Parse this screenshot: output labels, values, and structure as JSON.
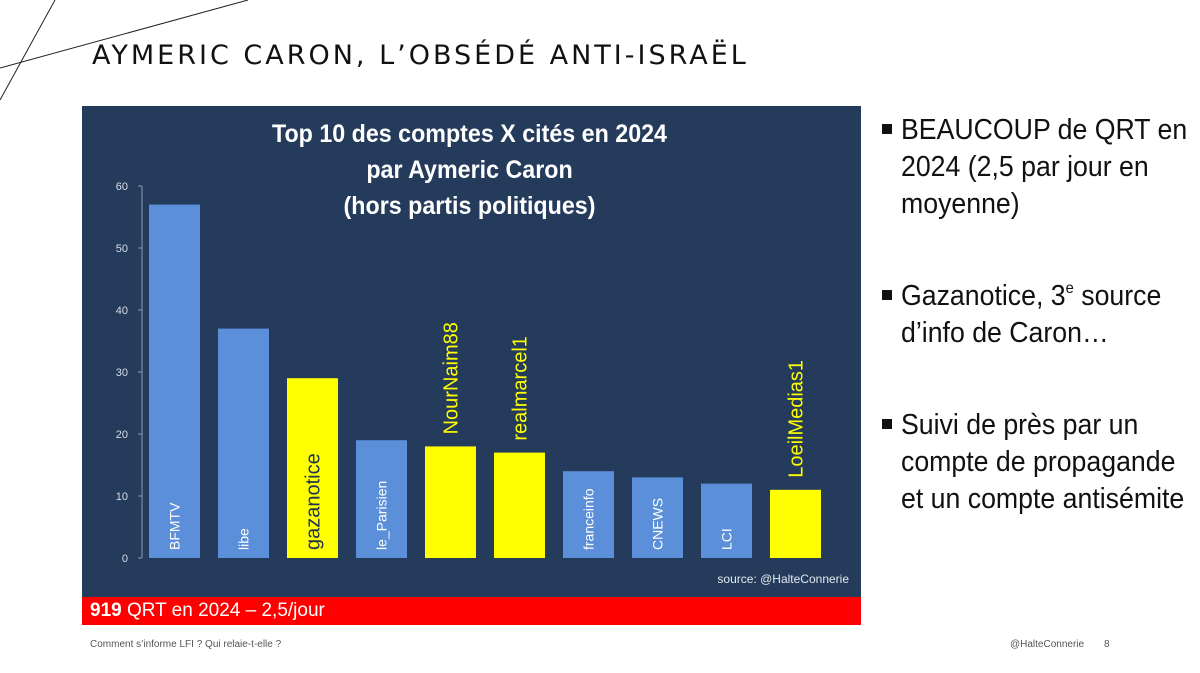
{
  "slide": {
    "title": "AYMERIC CARON, L’OBSÉDÉ ANTI-ISRAËL",
    "footer_left": "Comment s’informe LFI ? Qui relaie-t-elle ?",
    "footer_handle": "@HalteConnerie",
    "page_number": "8"
  },
  "chart_data": {
    "type": "bar",
    "title_lines": [
      "Top 10 des comptes X cités en 2024",
      "par Aymeric Caron",
      "(hors partis politiques)"
    ],
    "categories": [
      "BFMTV",
      "libe",
      "gazanotice",
      "le_Parisien",
      "NourNaim88",
      "realmarcel1",
      "franceinfo",
      "CNEWS",
      "LCI",
      "LoeilMedias1"
    ],
    "values": [
      57,
      37,
      29,
      19,
      18,
      17,
      14,
      13,
      12,
      11
    ],
    "highlighted": [
      false,
      false,
      true,
      false,
      true,
      true,
      false,
      false,
      false,
      true
    ],
    "ylim": [
      0,
      60
    ],
    "yticks": [
      0,
      10,
      20,
      30,
      40,
      50,
      60
    ],
    "xlabel": "",
    "ylabel": "",
    "grid": false,
    "source": "source: @HalteConnerie",
    "colors": {
      "background": "#243b5c",
      "bar": "#5b8fd9",
      "bar_highlight": "#ffff00",
      "label_on_blue": "#ffffff",
      "label_on_yellow": "#1f3350",
      "label_above": "#ffff00"
    }
  },
  "qrt_band": {
    "count": "919",
    "text": " QRT en 2024 – 2,5/jour",
    "color": "#ff0000"
  },
  "bullets": {
    "b1": "BEAUCOUP de QRT en 2024 (2,5 par jour en moyenne)",
    "b2_pre": "Gazanotice, 3",
    "b2_sup": "e",
    "b2_post": " source d’info de Caron…",
    "b3": "Suivi de près par un compte de propagande et un compte antisémite"
  }
}
